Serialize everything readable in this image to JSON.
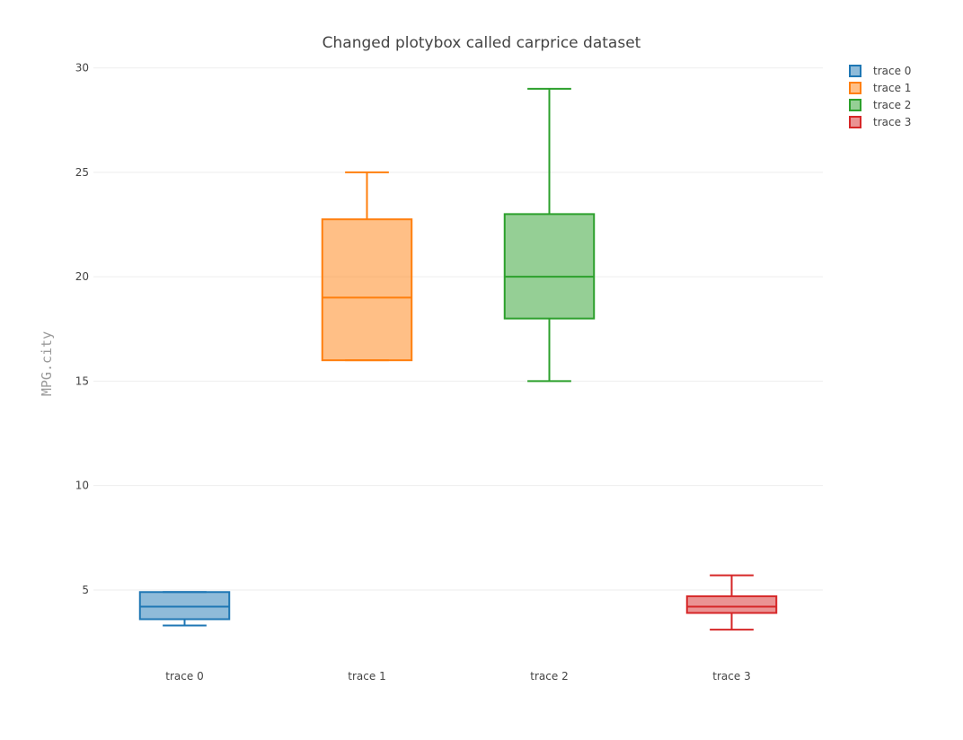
{
  "chart_data": {
    "type": "box",
    "title": "Changed plotybox called carprice dataset",
    "xlabel": "",
    "ylabel": "MPG.city",
    "ylim": [
      1.6,
      30.5
    ],
    "yticks": [
      5,
      10,
      15,
      20,
      25,
      30
    ],
    "grid": true,
    "legend_position": "top-right",
    "categories": [
      "trace 0",
      "trace 1",
      "trace 2",
      "trace 3"
    ],
    "series": [
      {
        "name": "trace 0",
        "color": "#1f77b4",
        "fill": "rgba(31,119,180,0.5)",
        "min": 3.3,
        "q1": 3.6,
        "median": 4.2,
        "q3": 4.9,
        "max": 4.9
      },
      {
        "name": "trace 1",
        "color": "#ff7f0e",
        "fill": "rgba(255,127,14,0.5)",
        "min": 16,
        "q1": 16,
        "median": 19,
        "q3": 22.75,
        "max": 25
      },
      {
        "name": "trace 2",
        "color": "#2ca02c",
        "fill": "rgba(44,160,44,0.5)",
        "min": 15,
        "q1": 18,
        "median": 20,
        "q3": 23,
        "max": 29
      },
      {
        "name": "trace 3",
        "color": "#d62728",
        "fill": "rgba(214,39,40,0.5)",
        "min": 3.1,
        "q1": 3.9,
        "median": 4.2,
        "q3": 4.7,
        "max": 5.7
      }
    ]
  }
}
